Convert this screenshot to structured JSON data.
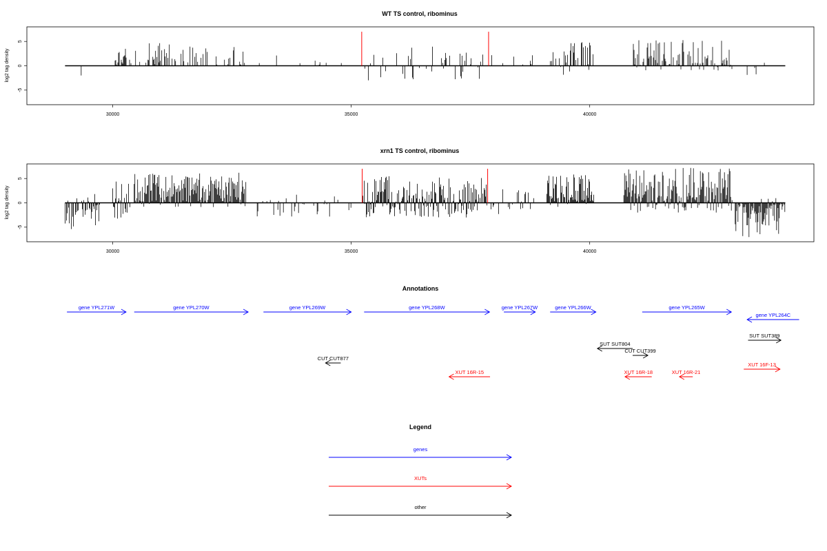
{
  "chart_data": [
    {
      "type": "bar",
      "title": "WT TS control, ribominus",
      "ylabel": "log2 tag density",
      "xlim": [
        28200,
        44700
      ],
      "ylim": [
        -8,
        8
      ],
      "xticks": [
        30000,
        35000,
        40000
      ],
      "yticks": [
        5,
        0,
        -5
      ],
      "coverage_range": [
        29000,
        44100
      ],
      "markers": [
        35220,
        37880
      ],
      "marker_color": "#ff0000",
      "bar_color": "#000000",
      "segments": [
        {
          "start": 29050,
          "end": 29750,
          "min": -3,
          "max": 0,
          "density": 0.05
        },
        {
          "start": 30050,
          "end": 30400,
          "min": 0,
          "max": 3.5,
          "density": 0.2
        },
        {
          "start": 30450,
          "end": 32800,
          "min": 0,
          "max": 4.8,
          "density": 0.13
        },
        {
          "start": 33000,
          "end": 35000,
          "min": 0,
          "max": 2.5,
          "density": 0.02
        },
        {
          "start": 35230,
          "end": 37850,
          "min": -3,
          "max": 4.1,
          "density": 0.08
        },
        {
          "start": 37900,
          "end": 38900,
          "min": 0,
          "max": 2.5,
          "density": 0.03
        },
        {
          "start": 39100,
          "end": 40100,
          "min": -2,
          "max": 5.2,
          "density": 0.18
        },
        {
          "start": 40900,
          "end": 43000,
          "min": -1,
          "max": 5.5,
          "density": 0.2
        },
        {
          "start": 43300,
          "end": 44000,
          "min": -3,
          "max": 1,
          "density": 0.05
        }
      ]
    },
    {
      "type": "bar",
      "title": "xrn1 TS control, ribominus",
      "ylabel": "log2 tag density",
      "xlim": [
        28200,
        44700
      ],
      "ylim": [
        -8,
        8
      ],
      "xticks": [
        30000,
        35000,
        40000
      ],
      "yticks": [
        5,
        0,
        -5
      ],
      "coverage_range": [
        29000,
        44100
      ],
      "markers": [
        35230,
        37860
      ],
      "marker_color": "#ff0000",
      "bar_color": "#000000",
      "segments": [
        {
          "start": 29000,
          "end": 29750,
          "min": -5.5,
          "max": 2,
          "density": 0.25
        },
        {
          "start": 30000,
          "end": 30400,
          "min": -3.5,
          "max": 5,
          "density": 0.3
        },
        {
          "start": 30450,
          "end": 32800,
          "min": -1,
          "max": 6.2,
          "density": 0.45
        },
        {
          "start": 33000,
          "end": 35000,
          "min": -3,
          "max": 2.5,
          "density": 0.08
        },
        {
          "start": 35230,
          "end": 37850,
          "min": -3,
          "max": 5.5,
          "density": 0.35
        },
        {
          "start": 37900,
          "end": 38900,
          "min": -3,
          "max": 3,
          "density": 0.1
        },
        {
          "start": 39100,
          "end": 40100,
          "min": -1,
          "max": 6,
          "density": 0.45
        },
        {
          "start": 40700,
          "end": 43000,
          "min": -2,
          "max": 7.2,
          "density": 0.55
        },
        {
          "start": 43050,
          "end": 44100,
          "min": -7.5,
          "max": 1,
          "density": 0.45
        }
      ]
    }
  ],
  "annotations": {
    "title": "Annotations",
    "features": [
      {
        "label": "gene YPL271W",
        "type": "genes",
        "strand": "+",
        "start": 29040,
        "end": 30280,
        "row": 0
      },
      {
        "label": "gene YPL270W",
        "type": "genes",
        "strand": "+",
        "start": 30450,
        "end": 32840,
        "row": 0
      },
      {
        "label": "gene YPL269W",
        "type": "genes",
        "strand": "+",
        "start": 33160,
        "end": 35000,
        "row": 0
      },
      {
        "label": "gene YPL268W",
        "type": "genes",
        "strand": "+",
        "start": 35270,
        "end": 37900,
        "row": 0
      },
      {
        "label": "gene YPL267W",
        "type": "genes",
        "strand": "+",
        "start": 38200,
        "end": 38860,
        "row": 0
      },
      {
        "label": "gene YPL266W",
        "type": "genes",
        "strand": "+",
        "start": 39170,
        "end": 40130,
        "row": 0
      },
      {
        "label": "gene YPL265W",
        "type": "genes",
        "strand": "+",
        "start": 41100,
        "end": 42970,
        "row": 0
      },
      {
        "label": "gene YPL264C",
        "type": "genes",
        "strand": "-",
        "start": 43300,
        "end": 44390,
        "row": 1
      },
      {
        "label": "SUT SUT389",
        "type": "other",
        "strand": "+",
        "start": 43320,
        "end": 44010,
        "row": 2
      },
      {
        "label": "SUT SUT804",
        "type": "other",
        "strand": "-",
        "start": 40160,
        "end": 40900,
        "row": 3
      },
      {
        "label": "CUT CUT399",
        "type": "other",
        "strand": "+",
        "start": 40900,
        "end": 41220,
        "row": 4
      },
      {
        "label": "CUT CUT877",
        "type": "other",
        "strand": "-",
        "start": 34460,
        "end": 34780,
        "row": 5
      },
      {
        "label": "XUT 16F-13",
        "type": "XUTs",
        "strand": "+",
        "start": 43230,
        "end": 43990,
        "row": 6
      },
      {
        "label": "XUT 16R-15",
        "type": "XUTs",
        "strand": "-",
        "start": 37050,
        "end": 37910,
        "row": 7
      },
      {
        "label": "XUT 16R-18",
        "type": "XUTs",
        "strand": "-",
        "start": 40740,
        "end": 41300,
        "row": 7
      },
      {
        "label": "XUT 16R-21",
        "type": "XUTs",
        "strand": "-",
        "start": 41880,
        "end": 42160,
        "row": 7
      }
    ]
  },
  "legend": {
    "title": "Legend",
    "items": [
      {
        "label": "genes",
        "color": "#0000ff"
      },
      {
        "label": "XUTs",
        "color": "#ff0000"
      },
      {
        "label": "other",
        "color": "#000000"
      }
    ]
  },
  "colors": {
    "genes": "#0000ff",
    "XUTs": "#ff0000",
    "other": "#000000"
  }
}
